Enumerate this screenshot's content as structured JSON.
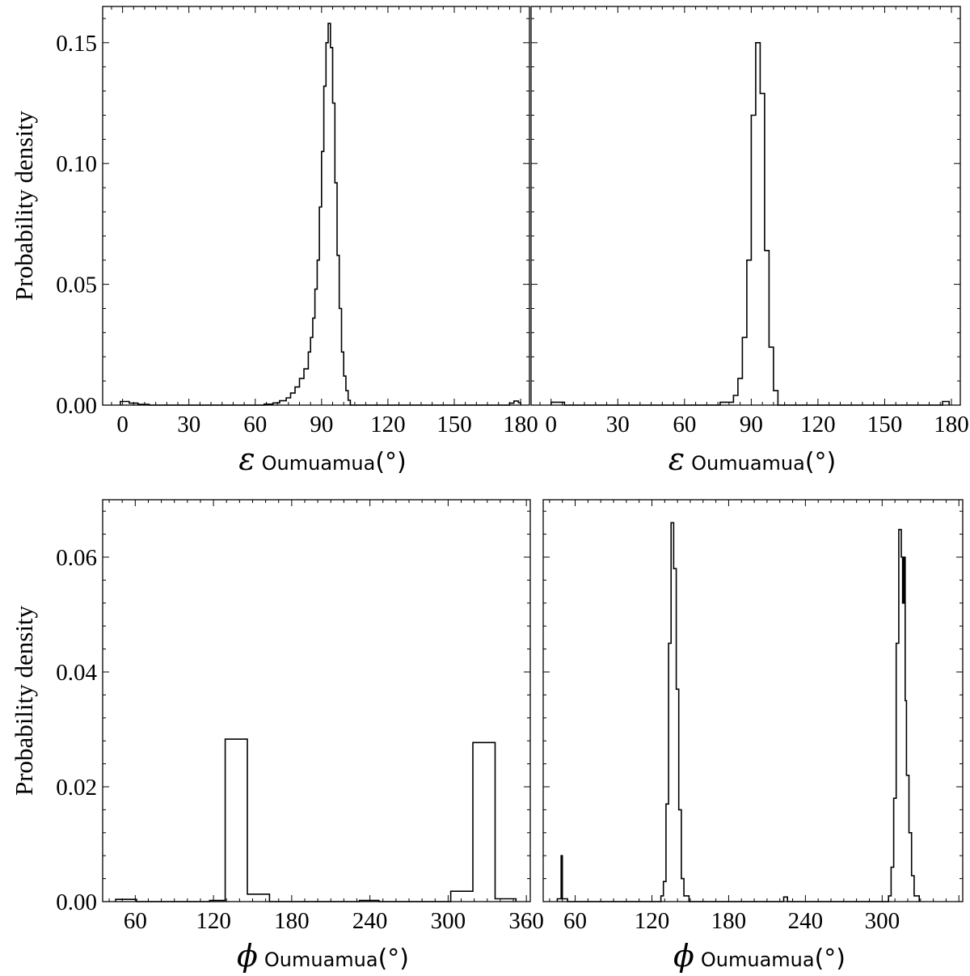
{
  "chart_data": [
    {
      "id": "eps_a",
      "type": "histogram",
      "ylabel": "Probability density",
      "xlabel": {
        "symbol": "ε",
        "subscript": "Oumuamua",
        "unit": "(°)"
      },
      "xlim": [
        -9,
        184
      ],
      "ylim": [
        0,
        0.165
      ],
      "xticks": [
        "0",
        "30",
        "60",
        "90",
        "120",
        "150",
        "180"
      ],
      "yticks": [
        "0.00",
        "0.05",
        "0.10",
        "0.15"
      ],
      "step_points": [
        [
          -1,
          0
        ],
        [
          -1,
          0.0015
        ],
        [
          3,
          0.0015
        ],
        [
          3,
          0.0008
        ],
        [
          7,
          0.0008
        ],
        [
          7,
          0.0003
        ],
        [
          12,
          0.0003
        ],
        [
          12,
          0
        ],
        [
          64,
          0
        ],
        [
          64,
          0.0004
        ],
        [
          68,
          0.0004
        ],
        [
          68,
          0.0009
        ],
        [
          71,
          0.0009
        ],
        [
          71,
          0.0018
        ],
        [
          74,
          0.0018
        ],
        [
          74,
          0.003
        ],
        [
          76,
          0.003
        ],
        [
          76,
          0.005
        ],
        [
          78,
          0.005
        ],
        [
          78,
          0.0075
        ],
        [
          80,
          0.0075
        ],
        [
          80,
          0.011
        ],
        [
          82,
          0.011
        ],
        [
          82,
          0.015
        ],
        [
          84,
          0.015
        ],
        [
          84,
          0.022
        ],
        [
          85,
          0.022
        ],
        [
          85,
          0.028
        ],
        [
          86,
          0.028
        ],
        [
          86,
          0.036
        ],
        [
          87,
          0.036
        ],
        [
          87,
          0.048
        ],
        [
          88,
          0.048
        ],
        [
          88,
          0.06
        ],
        [
          89,
          0.06
        ],
        [
          89,
          0.082
        ],
        [
          90,
          0.082
        ],
        [
          90,
          0.105
        ],
        [
          91,
          0.105
        ],
        [
          91,
          0.132
        ],
        [
          92,
          0.132
        ],
        [
          92,
          0.15
        ],
        [
          93,
          0.15
        ],
        [
          93,
          0.158
        ],
        [
          94,
          0.158
        ],
        [
          94,
          0.148
        ],
        [
          95,
          0.148
        ],
        [
          95,
          0.125
        ],
        [
          96,
          0.125
        ],
        [
          96,
          0.092
        ],
        [
          97,
          0.092
        ],
        [
          97,
          0.062
        ],
        [
          98,
          0.062
        ],
        [
          98,
          0.04
        ],
        [
          99,
          0.04
        ],
        [
          99,
          0.022
        ],
        [
          100,
          0.022
        ],
        [
          100,
          0.012
        ],
        [
          101,
          0.012
        ],
        [
          101,
          0.006
        ],
        [
          102,
          0.006
        ],
        [
          102,
          0.002
        ],
        [
          103,
          0.002
        ],
        [
          103,
          0
        ],
        [
          175,
          0
        ],
        [
          175,
          0.0008
        ],
        [
          177,
          0.0008
        ],
        [
          177,
          0.0017
        ],
        [
          179,
          0.0017
        ],
        [
          179,
          0.001
        ],
        [
          180,
          0.001
        ],
        [
          180,
          0
        ]
      ]
    },
    {
      "id": "eps_b",
      "type": "histogram",
      "ylabel": "",
      "xlabel": {
        "symbol": "ε",
        "subscript": "Oumuamua",
        "unit": "(°)"
      },
      "xlim": [
        -9,
        184
      ],
      "ylim": [
        0,
        0.165
      ],
      "xticks": [
        "0",
        "30",
        "60",
        "90",
        "120",
        "150",
        "180"
      ],
      "yticks": [],
      "step_points": [
        [
          0,
          0
        ],
        [
          0,
          0.0012
        ],
        [
          6,
          0.0012
        ],
        [
          6,
          0
        ],
        [
          76,
          0
        ],
        [
          76,
          0.0012
        ],
        [
          82,
          0.0012
        ],
        [
          82,
          0.004
        ],
        [
          84,
          0.004
        ],
        [
          84,
          0.011
        ],
        [
          86,
          0.011
        ],
        [
          86,
          0.028
        ],
        [
          88,
          0.028
        ],
        [
          88,
          0.06
        ],
        [
          90,
          0.06
        ],
        [
          90,
          0.12
        ],
        [
          92,
          0.12
        ],
        [
          92,
          0.15
        ],
        [
          94,
          0.15
        ],
        [
          94,
          0.129
        ],
        [
          96,
          0.129
        ],
        [
          96,
          0.064
        ],
        [
          98,
          0.064
        ],
        [
          98,
          0.024
        ],
        [
          100,
          0.024
        ],
        [
          100,
          0.006
        ],
        [
          102,
          0.006
        ],
        [
          102,
          0
        ],
        [
          176,
          0
        ],
        [
          176,
          0.0015
        ],
        [
          179,
          0.0015
        ],
        [
          179,
          0
        ]
      ]
    },
    {
      "id": "phi_a",
      "type": "histogram",
      "ylabel": "Probability density",
      "xlabel": {
        "symbol": "ϕ",
        "subscript": "Oumuamua",
        "unit": "(°)"
      },
      "xlim": [
        35,
        363
      ],
      "ylim": [
        0,
        0.07
      ],
      "xticks": [
        "60",
        "120",
        "180",
        "240",
        "300",
        "360"
      ],
      "yticks": [
        "0.00",
        "0.02",
        "0.04",
        "0.06"
      ],
      "step_points": [
        [
          45,
          0
        ],
        [
          45,
          0.0004
        ],
        [
          61,
          0.0004
        ],
        [
          61,
          0
        ],
        [
          117,
          0
        ],
        [
          117,
          0.0002
        ],
        [
          129,
          0.0002
        ],
        [
          129,
          0.0283
        ],
        [
          146,
          0.0283
        ],
        [
          146,
          0.0013
        ],
        [
          163,
          0.0013
        ],
        [
          163,
          0
        ],
        [
          232,
          0
        ],
        [
          232,
          0.0002
        ],
        [
          247,
          0.0002
        ],
        [
          247,
          0
        ],
        [
          302,
          0
        ],
        [
          302,
          0.0018
        ],
        [
          319,
          0.0018
        ],
        [
          319,
          0.0277
        ],
        [
          336,
          0.0277
        ],
        [
          336,
          0.0005
        ],
        [
          352,
          0.0005
        ],
        [
          352,
          0
        ]
      ]
    },
    {
      "id": "phi_b",
      "type": "histogram",
      "ylabel": "",
      "xlabel": {
        "symbol": "ϕ",
        "subscript": "Oumuamua",
        "unit": "(°)"
      },
      "xlim": [
        35,
        363
      ],
      "ylim": [
        0,
        0.07
      ],
      "xticks": [
        "60",
        "120",
        "180",
        "240",
        "300"
      ],
      "yticks": [],
      "step_points": [
        [
          46,
          0
        ],
        [
          46,
          0.0005
        ],
        [
          49,
          0.0005
        ],
        [
          49,
          0.008
        ],
        [
          50,
          0.008
        ],
        [
          50,
          0.0005
        ],
        [
          54,
          0.0005
        ],
        [
          54,
          0
        ],
        [
          127,
          0
        ],
        [
          127,
          0.001
        ],
        [
          129,
          0.001
        ],
        [
          129,
          0.0035
        ],
        [
          131,
          0.0035
        ],
        [
          131,
          0.017
        ],
        [
          133,
          0.017
        ],
        [
          133,
          0.045
        ],
        [
          135,
          0.045
        ],
        [
          135,
          0.066
        ],
        [
          137,
          0.066
        ],
        [
          137,
          0.058
        ],
        [
          139,
          0.058
        ],
        [
          139,
          0.037
        ],
        [
          141,
          0.037
        ],
        [
          141,
          0.016
        ],
        [
          143,
          0.016
        ],
        [
          143,
          0.004
        ],
        [
          145,
          0.004
        ],
        [
          145,
          0.001
        ],
        [
          149,
          0.001
        ],
        [
          149,
          0
        ],
        [
          223,
          0
        ],
        [
          223,
          0.0008
        ],
        [
          226,
          0.0008
        ],
        [
          226,
          0
        ],
        [
          305,
          0
        ],
        [
          305,
          0.001
        ],
        [
          307,
          0.001
        ],
        [
          307,
          0.006
        ],
        [
          309,
          0.006
        ],
        [
          309,
          0.018
        ],
        [
          311,
          0.018
        ],
        [
          311,
          0.045
        ],
        [
          313,
          0.045
        ],
        [
          313,
          0.0648
        ],
        [
          315,
          0.0648
        ],
        [
          315,
          0.06
        ],
        [
          316,
          0.06
        ],
        [
          316,
          0.052
        ],
        [
          317,
          0.052
        ],
        [
          317,
          0.06
        ],
        [
          318,
          0.06
        ],
        [
          318,
          0.035
        ],
        [
          319,
          0.035
        ],
        [
          319,
          0.022
        ],
        [
          321,
          0.022
        ],
        [
          321,
          0.012
        ],
        [
          323,
          0.012
        ],
        [
          323,
          0.0045
        ],
        [
          325,
          0.0045
        ],
        [
          325,
          0.001
        ],
        [
          329,
          0.001
        ],
        [
          329,
          0
        ]
      ]
    }
  ]
}
